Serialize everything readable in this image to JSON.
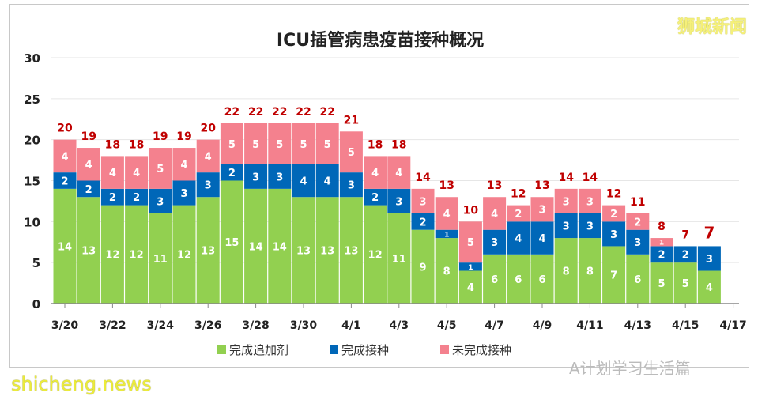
{
  "chart_data": {
    "type": "bar",
    "stacked": true,
    "title": "ICU插管病患疫苗接种概况",
    "xlabel": "",
    "ylabel": "",
    "ylim": [
      0,
      30
    ],
    "yticks": [
      0,
      5,
      10,
      15,
      20,
      25,
      30
    ],
    "grid": true,
    "legend_position": "bottom",
    "categories": [
      "3/20",
      "3/21",
      "3/22",
      "3/23",
      "3/24",
      "3/25",
      "3/26",
      "3/27",
      "3/28",
      "3/29",
      "3/30",
      "3/31",
      "4/1",
      "4/2",
      "4/3",
      "4/4",
      "4/5",
      "4/6",
      "4/7",
      "4/8",
      "4/9",
      "4/10",
      "4/11",
      "4/12",
      "4/13",
      "4/14",
      "4/15",
      "4/16"
    ],
    "xtick_labels": [
      "3/20",
      "3/22",
      "3/24",
      "3/26",
      "3/28",
      "3/30",
      "4/1",
      "4/3",
      "4/5",
      "4/7",
      "4/9",
      "4/11",
      "4/13",
      "4/15",
      "4/17"
    ],
    "series": [
      {
        "name": "完成追加剂",
        "color": "#92d050",
        "values": [
          14,
          13,
          12,
          12,
          11,
          12,
          13,
          15,
          14,
          14,
          13,
          13,
          13,
          12,
          11,
          9,
          8,
          4,
          6,
          6,
          6,
          8,
          8,
          7,
          6,
          5,
          5,
          4
        ]
      },
      {
        "name": "完成接种",
        "color": "#0067b8",
        "values": [
          2,
          2,
          2,
          2,
          3,
          3,
          3,
          2,
          3,
          3,
          4,
          4,
          3,
          2,
          3,
          2,
          1,
          1,
          3,
          4,
          4,
          3,
          3,
          3,
          3,
          2,
          2,
          3
        ]
      },
      {
        "name": "未完成接种",
        "color": "#f4818e",
        "values": [
          4,
          4,
          4,
          4,
          5,
          4,
          4,
          5,
          5,
          5,
          5,
          5,
          5,
          4,
          4,
          3,
          4,
          5,
          4,
          2,
          3,
          3,
          3,
          2,
          2,
          1,
          0,
          0
        ]
      }
    ],
    "totals": [
      20,
      19,
      18,
      18,
      19,
      19,
      20,
      22,
      22,
      22,
      22,
      22,
      21,
      18,
      18,
      14,
      13,
      10,
      13,
      12,
      13,
      14,
      14,
      12,
      11,
      8,
      7,
      7
    ]
  },
  "watermarks": {
    "top_right": "狮城新闻",
    "bottom_left": "shicheng.news",
    "wechat": "A计划学习生活篇"
  }
}
